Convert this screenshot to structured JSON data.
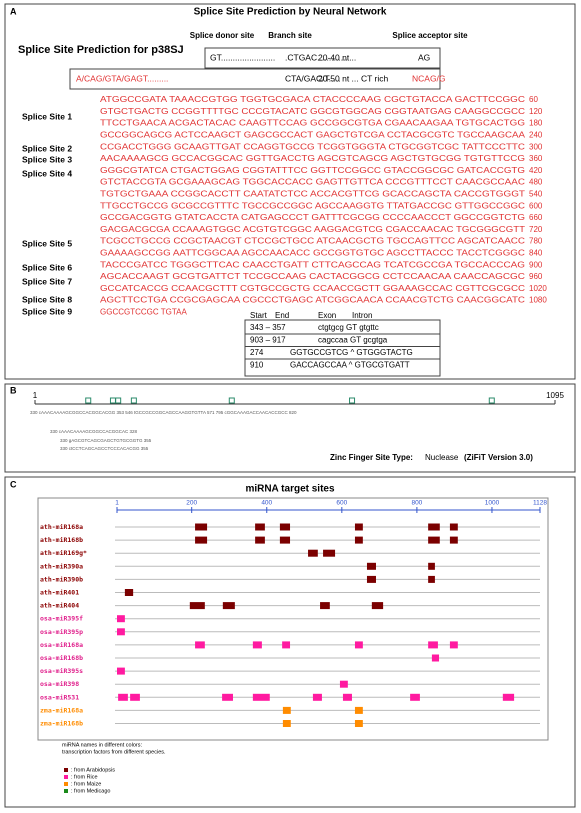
{
  "panel_a": {
    "label": "A",
    "title": "Splice Site Prediction by Neural Network",
    "subtitle": "Splice Site Prediction for p38SJ",
    "header": [
      "Splice donor site",
      "Branch site",
      "Splice acceptor site"
    ],
    "consensus_1": [
      "GT.......................",
      ".CTGAC.............",
      "20-40 nt...",
      "AG"
    ],
    "consensus_2": [
      "A/CAG/GTA/GAGT.........",
      "CTA/GAC/T.....",
      "20-50 nt ... CT rich",
      "NCAG/G"
    ],
    "sequence": [
      {
        "seq": "ATGGCCGATA TAAACCGTGG TGGTGCGACA CTACCCCAAG CGCTGTACCA GACTTCCGGC",
        "pos": 60
      },
      {
        "seq": "GTGCTGACTG CCGGTTTTGC CCCGTACATC GGCGTGGCAG CGGTAATGAG CAAGGCCGCC",
        "pos": 120
      },
      {
        "seq": "TTCCTGAACA ACGACTACAC CAAGTTCCAG GCCGGCGTGA CGAACAAGAA TGTGCACTGG",
        "pos": 180
      },
      {
        "seq": "GCCGGCAGCG ACTCCAAGCT GAGCGCCACT GAGCTGTCGA CCTACGCGTC TGCCAAGCAA",
        "pos": 240
      },
      {
        "seq": "CCGACCTGGG GCAAGTTGAT CCAGGTGCCG TCGGTGGGTA CTGCGGTCGC TATTCCCTTC",
        "pos": 300
      },
      {
        "seq": "AACAAAAGCG GCCACGGCAC GGTTGACCTG AGCGTCAGCG AGCTGTGCGG TGTGTTCCG",
        "pos": 360
      },
      {
        "seq": "GGGCGTATCA CTGACTGGAG CGGTATTTCC GGTTCCGGCC GTACCGGCGC GATCACCGTG",
        "pos": 420
      },
      {
        "seq": "GTCTACCGTA GCGAAAGCAG TGGCACCACC GAGTTGTTCA CCCGTTTCCT CAACGCCAAC",
        "pos": 480
      },
      {
        "seq": "TGTGCTGAAA CCGGCACCTT CAATATCTCC ACCACGTTCG GCACCAGCTA CACCGTGGGT",
        "pos": 540
      },
      {
        "seq": "TTGCCTGCCG GCGCCGTTTC TGCCGCCGGC AGCCAAGGTG TTATGACCGC GTTGGCCGGC",
        "pos": 600
      },
      {
        "seq": "GCCGACGGTG GTATCACCTA CATGAGCCCT GATTTCGCGG CCCCAACCCT GGCCGGTCTG",
        "pos": 660
      },
      {
        "seq": "GACGACGCGA CCAAAGTGGC ACGTGTCGGC AAGGACGTCG CGACCAACAC TGCGGGCGTT",
        "pos": 720
      },
      {
        "seq": "TCGCCTGCCG CCGCTAACGT CTCCGCTGCC ATCAACGCTG TGCCAGTTCC AGCATCAACC",
        "pos": 780
      },
      {
        "seq": "GAAAAGCCGG AATTCGGCAA AGCCAACACC GCCGGTGTGC AGCCTTACCC TACCTCGGGC",
        "pos": 840
      },
      {
        "seq": "TACCCGATCC TGGGCTTCAC CAACCTGATT CTTCAGCCAG TCATCGCCGA TGCCACCCAG",
        "pos": 900
      },
      {
        "seq": "AGCACCAAGT GCGTGATTCT TCCGCCAAG CACTACGGCG CCTCCAACAA CAACCAGCGC",
        "pos": 960
      },
      {
        "seq": "GCCATCACCG CCAACGCTTT CGTGCCGCTG CCAACCGCTT GGAAAGCCAC CGTTCGCGCC",
        "pos": 1020
      },
      {
        "seq": "AGCTTCCTGA CCGCGAGCAA CGCCCTGAGC ATCGGCAACA CCAACGTCTG CAACGGCATC",
        "pos": 1080
      },
      {
        "seq": "GGCCGTCCGC TGTAA"
      }
    ],
    "splice_sites": [
      "Splice Site 1",
      "Splice Site 2",
      "Splice Site 3",
      "Splice Site 4",
      "Splice Site 5",
      "Splice Site 6",
      "Splice Site 7",
      "Splice Site 8",
      "Splice Site 9"
    ],
    "table": {
      "header": [
        "Start",
        "End",
        "Exon",
        "Intron"
      ],
      "rows": [
        [
          "343 – 357",
          "ctgtgcg GT gtgttc"
        ],
        [
          "903 – 917",
          "cagccaa GT gcgtga"
        ],
        [
          "274",
          "GGTGCCGTCG ^ GTGGGTACTG"
        ],
        [
          "910",
          "GACCAGCCAA ^ GTGCGTGATT"
        ]
      ]
    }
  },
  "panel_b": {
    "label": "B",
    "xlim": [
      1,
      1095
    ],
    "xticks": [
      1,
      1095
    ],
    "sites": [
      113,
      165,
      176,
      209,
      415,
      668,
      962
    ],
    "snippets": [
      "330 cAAACAAAAGCGGCCACGGCACGG 353   546 tGCCGCCGGCAGCCAAGGTGTTA 571   795 cGGCAAAGACCAACACCGCC 820",
      "330 cAAACAAAAGCGGCCACGGCAC 328",
      "330 gAGCGTCAGCGAGCTGTGCGGTG 355",
      "330 ctCCTCAGCAGCCTCCCACACGG 355"
    ],
    "caption": [
      "Zinc Finger Site Type:",
      "Nuclease",
      "(ZiFiT Version 3.0)"
    ]
  },
  "panel_c": {
    "label": "C",
    "title": "miRNA target sites",
    "xlim": [
      1,
      1128
    ],
    "xticks": [
      1,
      200,
      400,
      600,
      800,
      1000,
      1128
    ],
    "colors": {
      "ath": "#7b0000",
      "osa": "#ff1aa0",
      "zma": "#ff8c00"
    },
    "label_colors": {
      "ath": "#8b0000",
      "osa": "#e0208c",
      "zma": "#ff8c00"
    },
    "rows": [
      {
        "name": "ath-miR168a",
        "species": "ath",
        "sites": [
          [
            209,
            241
          ],
          [
            369,
            395
          ],
          [
            435,
            462
          ],
          [
            635,
            656
          ],
          [
            830,
            861
          ],
          [
            888,
            909
          ]
        ]
      },
      {
        "name": "ath-miR168b",
        "species": "ath",
        "sites": [
          [
            209,
            241
          ],
          [
            369,
            395
          ],
          [
            435,
            462
          ],
          [
            635,
            656
          ],
          [
            830,
            861
          ],
          [
            888,
            909
          ]
        ]
      },
      {
        "name": "ath-miR169g*",
        "species": "ath",
        "sites": [
          [
            510,
            536
          ],
          [
            550,
            582
          ]
        ]
      },
      {
        "name": "ath-miR390a",
        "species": "ath",
        "sites": [
          [
            667,
            691
          ],
          [
            830,
            848
          ]
        ]
      },
      {
        "name": "ath-miR390b",
        "species": "ath",
        "sites": [
          [
            667,
            691
          ],
          [
            830,
            848
          ]
        ]
      },
      {
        "name": "ath-miR401",
        "species": "ath",
        "sites": [
          [
            22,
            44
          ]
        ]
      },
      {
        "name": "ath-miR404",
        "species": "ath",
        "sites": [
          [
            195,
            235
          ],
          [
            283,
            315
          ],
          [
            542,
            568
          ],
          [
            680,
            710
          ]
        ]
      },
      {
        "name": "osa-miR395f",
        "species": "osa",
        "sites": [
          [
            1,
            22
          ]
        ]
      },
      {
        "name": "osa-miR395p",
        "species": "osa",
        "sites": [
          [
            1,
            22
          ]
        ]
      },
      {
        "name": "osa-miR168a",
        "species": "osa",
        "sites": [
          [
            209,
            235
          ],
          [
            363,
            387
          ],
          [
            441,
            462
          ],
          [
            635,
            656
          ],
          [
            830,
            856
          ],
          [
            888,
            909
          ]
        ]
      },
      {
        "name": "osa-miR168b",
        "species": "osa",
        "sites": [
          [
            840,
            859
          ]
        ]
      },
      {
        "name": "osa-miR395s",
        "species": "osa",
        "sites": [
          [
            1,
            22
          ]
        ]
      },
      {
        "name": "osa-miR398",
        "species": "osa",
        "sites": [
          [
            595,
            616
          ]
        ]
      },
      {
        "name": "osa-miR531",
        "species": "osa",
        "sites": [
          [
            4,
            30
          ],
          [
            36,
            62
          ],
          [
            281,
            310
          ],
          [
            363,
            408
          ],
          [
            523,
            547
          ],
          [
            603,
            627
          ],
          [
            782,
            808
          ],
          [
            1029,
            1059
          ]
        ]
      },
      {
        "name": "zma-miR168a",
        "species": "zma",
        "sites": [
          [
            443,
            464
          ],
          [
            635,
            656
          ]
        ]
      },
      {
        "name": "zma-miR168b",
        "species": "zma",
        "sites": [
          [
            443,
            464
          ],
          [
            635,
            656
          ]
        ]
      }
    ],
    "note": [
      "miRNA names in different colors:",
      "transcription factors from different species."
    ],
    "legend": [
      {
        "name": ": from Arabidopsis",
        "color": "#7b0000"
      },
      {
        "name": ": from Rice",
        "color": "#ff1aa0"
      },
      {
        "name": ": from Maize",
        "color": "#ff8c00"
      },
      {
        "name": ": from Medicago",
        "color": "#1a8a1a"
      }
    ]
  }
}
